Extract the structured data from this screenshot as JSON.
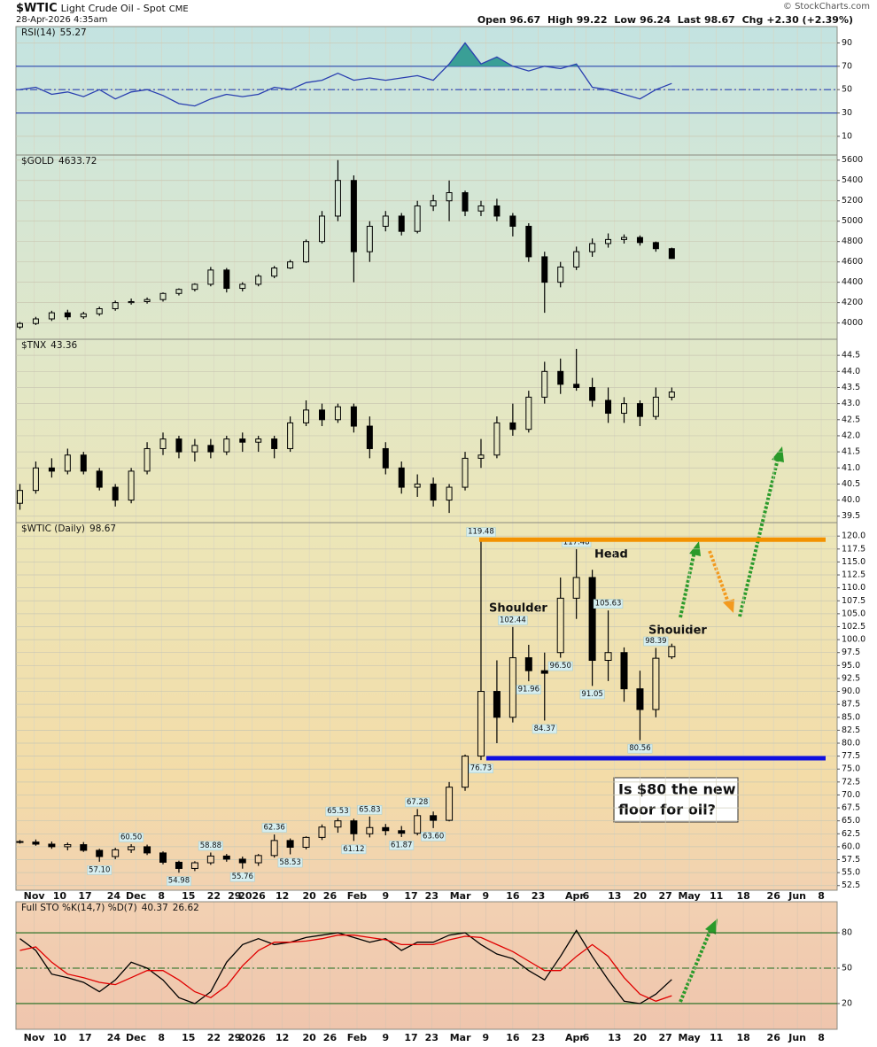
{
  "header": {
    "symbol": "$WTIC",
    "name": "Light Crude Oil - Spot",
    "exchange": "CME",
    "date": "28-Apr-2026 4:35am",
    "quote_labels": [
      "Open",
      "High",
      "Low",
      "Last",
      "Chg"
    ],
    "change": "+2.30 (+2.39%)",
    "credit": "© StockCharts.com"
  },
  "x_axis": {
    "xlim": [
      -0.25,
      51.4
    ],
    "xticks": [
      {
        "value": 0.9,
        "label": "Nov"
      },
      {
        "value": 2.5,
        "label": "10"
      },
      {
        "value": 4.1,
        "label": "17"
      },
      {
        "value": 5.9,
        "label": "24"
      },
      {
        "value": 7.3,
        "label": "Dec"
      },
      {
        "value": 8.9,
        "label": "8"
      },
      {
        "value": 10.6,
        "label": "15"
      },
      {
        "value": 12.2,
        "label": "22"
      },
      {
        "value": 13.5,
        "label": "29"
      },
      {
        "value": 14.6,
        "label": "2026"
      },
      {
        "value": 16.5,
        "label": "12"
      },
      {
        "value": 18.2,
        "label": "20"
      },
      {
        "value": 19.5,
        "label": "26"
      },
      {
        "value": 21.2,
        "label": "Feb"
      },
      {
        "value": 23.0,
        "label": "9"
      },
      {
        "value": 24.6,
        "label": "17"
      },
      {
        "value": 25.9,
        "label": "23"
      },
      {
        "value": 27.7,
        "label": "Mar"
      },
      {
        "value": 29.3,
        "label": "9"
      },
      {
        "value": 31.0,
        "label": "16"
      },
      {
        "value": 32.6,
        "label": "23"
      },
      {
        "value": 34.9,
        "label": "Apr"
      },
      {
        "value": 35.6,
        "label": "6"
      },
      {
        "value": 37.4,
        "label": "13"
      },
      {
        "value": 39.0,
        "label": "20"
      },
      {
        "value": 40.6,
        "label": "27"
      },
      {
        "value": 42.1,
        "label": "May"
      },
      {
        "value": 43.8,
        "label": "11"
      },
      {
        "value": 45.5,
        "label": "18"
      },
      {
        "value": 47.4,
        "label": "26"
      },
      {
        "value": 48.9,
        "label": "Jun"
      },
      {
        "value": 50.4,
        "label": "8"
      }
    ]
  },
  "chart_data": [
    {
      "type": "line",
      "name": "RSI(14)",
      "ylim": [
        -6,
        104
      ],
      "yticks": [
        10,
        30,
        50,
        70,
        90
      ],
      "grid": true,
      "levels": [
        {
          "value": 70,
          "style": "solid",
          "color": "#2a3fb0"
        },
        {
          "value": 50,
          "style": "dashdot",
          "color": "#2a3fb0"
        },
        {
          "value": 30,
          "style": "solid",
          "color": "#2a3fb0"
        }
      ],
      "fill_above": 70,
      "fill_below": 30,
      "fill_color": "#3a9f96",
      "series": [
        {
          "name": "RSI(14)",
          "color": "#2a3fb0",
          "values": [
            50,
            52,
            46,
            48,
            44,
            50,
            42,
            48,
            50,
            45,
            38,
            36,
            42,
            46,
            44,
            46,
            52,
            50,
            56,
            58,
            64,
            58,
            60,
            58,
            60,
            62,
            58,
            72,
            90,
            72,
            78,
            70,
            66,
            70,
            68,
            72,
            52,
            50,
            46,
            42,
            50,
            55.27
          ]
        }
      ]
    },
    {
      "type": "candlestick",
      "name": "$GOLD",
      "ylim": [
        3840,
        5650
      ],
      "yticks": [
        4000,
        4200,
        4400,
        4600,
        4800,
        5000,
        5200,
        5400,
        5600
      ],
      "grid": true,
      "open": [
        3960,
        3995,
        4040,
        4100,
        4060,
        4090,
        4140,
        4200,
        4210,
        4230,
        4290,
        4330,
        4380,
        4520,
        4340,
        4380,
        4460,
        4540,
        4600,
        4800,
        5050,
        5400,
        4700,
        4950,
        5050,
        4900,
        5150,
        5200,
        5280,
        5100,
        5150,
        5050,
        4950,
        4650,
        4400,
        4550,
        4700,
        4780,
        4820,
        4840,
        4790,
        4730
      ],
      "high": [
        4010,
        4060,
        4120,
        4130,
        4110,
        4160,
        4220,
        4240,
        4250,
        4300,
        4340,
        4390,
        4550,
        4540,
        4400,
        4480,
        4560,
        4620,
        4820,
        5100,
        5600,
        5450,
        5000,
        5100,
        5080,
        5200,
        5260,
        5400,
        5300,
        5200,
        5220,
        5080,
        4980,
        4700,
        4600,
        4750,
        4830,
        4880,
        4870,
        4860,
        4800,
        4740
      ],
      "low": [
        3940,
        3980,
        4020,
        4030,
        4040,
        4070,
        4120,
        4180,
        4190,
        4210,
        4270,
        4310,
        4360,
        4300,
        4310,
        4360,
        4440,
        4530,
        4590,
        4780,
        5000,
        4400,
        4600,
        4900,
        4860,
        4880,
        5100,
        5000,
        5050,
        5050,
        5000,
        4850,
        4600,
        4100,
        4350,
        4520,
        4650,
        4740,
        4780,
        4760,
        4700,
        4630
      ],
      "close": [
        3995,
        4040,
        4100,
        4060,
        4090,
        4140,
        4200,
        4210,
        4230,
        4290,
        4330,
        4380,
        4520,
        4340,
        4380,
        4460,
        4540,
        4600,
        4800,
        5050,
        5400,
        4700,
        4950,
        5050,
        4900,
        5150,
        5200,
        5280,
        5100,
        5150,
        5050,
        4950,
        4650,
        4400,
        4550,
        4700,
        4780,
        4820,
        4840,
        4790,
        4730,
        4633.72
      ]
    },
    {
      "type": "candlestick",
      "name": "$TNX",
      "ylim": [
        39.3,
        45.0
      ],
      "grid": true,
      "yticks": [
        39.5,
        {
          "value": 40,
          "label": "40.0"
        },
        40.5,
        {
          "value": 41,
          "label": "41.0"
        },
        41.5,
        {
          "value": 42,
          "label": "42.0"
        },
        42.5,
        {
          "value": 43,
          "label": "43.0"
        },
        43.5,
        {
          "value": 44,
          "label": "44.0"
        },
        44.5
      ],
      "open": [
        39.9,
        40.3,
        41.0,
        40.9,
        41.4,
        40.9,
        40.4,
        40.0,
        40.9,
        41.6,
        41.9,
        41.5,
        41.7,
        41.5,
        41.9,
        41.8,
        41.9,
        41.6,
        42.4,
        42.8,
        42.5,
        42.9,
        42.3,
        41.6,
        41.0,
        40.4,
        40.5,
        40.0,
        40.4,
        41.3,
        41.4,
        42.4,
        42.2,
        43.2,
        44.0,
        43.6,
        43.5,
        43.1,
        42.7,
        43.0,
        42.6,
        43.2
      ],
      "high": [
        40.5,
        41.2,
        41.3,
        41.6,
        41.5,
        41.0,
        40.5,
        41.0,
        41.8,
        42.1,
        42.0,
        41.9,
        41.9,
        42.0,
        42.1,
        42.0,
        42.0,
        42.6,
        43.1,
        43.0,
        43.0,
        43.0,
        42.6,
        41.8,
        41.2,
        40.8,
        40.7,
        40.5,
        41.5,
        41.9,
        42.6,
        43.0,
        43.4,
        44.3,
        44.4,
        44.7,
        43.8,
        43.5,
        43.2,
        43.1,
        43.5,
        43.5
      ],
      "low": [
        39.7,
        40.2,
        40.7,
        40.8,
        40.8,
        40.3,
        39.8,
        39.9,
        40.8,
        41.4,
        41.3,
        41.2,
        41.3,
        41.4,
        41.5,
        41.5,
        41.3,
        41.5,
        42.3,
        42.3,
        42.4,
        42.1,
        41.3,
        40.8,
        40.2,
        40.1,
        39.8,
        39.6,
        40.3,
        41.0,
        41.3,
        42.0,
        42.1,
        43.0,
        43.3,
        43.4,
        42.9,
        42.4,
        42.4,
        42.3,
        42.5,
        43.1
      ],
      "close": [
        40.3,
        41.0,
        40.9,
        41.4,
        40.9,
        40.4,
        40.0,
        40.9,
        41.6,
        41.9,
        41.5,
        41.7,
        41.5,
        41.9,
        41.8,
        41.9,
        41.6,
        42.4,
        42.8,
        42.5,
        42.9,
        42.3,
        41.6,
        41.0,
        40.4,
        40.5,
        40.0,
        40.4,
        41.3,
        41.4,
        42.4,
        42.2,
        43.2,
        44.0,
        43.6,
        43.5,
        43.1,
        42.7,
        43.0,
        42.6,
        43.2,
        43.36
      ]
    },
    {
      "type": "candlestick",
      "name": "$WTIC (Daily)",
      "ylim": [
        51.6,
        122.6
      ],
      "grid": true,
      "yticks": [
        52.5,
        {
          "value": 55,
          "label": "55.0"
        },
        57.5,
        {
          "value": 60,
          "label": "60.0"
        },
        62.5,
        {
          "value": 65,
          "label": "65.0"
        },
        67.5,
        {
          "value": 70,
          "label": "70.0"
        },
        72.5,
        {
          "value": 75,
          "label": "75.0"
        },
        77.5,
        {
          "value": 80,
          "label": "80.0"
        },
        82.5,
        {
          "value": 85,
          "label": "85.0"
        },
        87.5,
        {
          "value": 90,
          "label": "90.0"
        },
        92.5,
        {
          "value": 95,
          "label": "95.0"
        },
        97.5,
        {
          "value": 100,
          "label": "100.0"
        },
        102.5,
        {
          "value": 105,
          "label": "105.0"
        },
        107.5,
        {
          "value": 110,
          "label": "110.0"
        },
        112.5,
        {
          "value": 115,
          "label": "115.0"
        },
        117.5,
        {
          "value": 120,
          "label": "120.0"
        }
      ],
      "open": [
        61.0,
        60.9,
        60.5,
        60.0,
        60.4,
        59.3,
        58.1,
        59.4,
        60.0,
        58.8,
        57.0,
        55.8,
        56.9,
        58.2,
        57.6,
        56.9,
        58.3,
        61.2,
        59.9,
        61.8,
        63.8,
        65.0,
        62.5,
        63.7,
        63.1,
        62.6,
        66.0,
        65.1,
        71.5,
        77.5,
        90.0,
        85.0,
        96.5,
        94.0,
        97.5,
        108.0,
        112.0,
        96.0,
        97.5,
        90.5,
        86.5,
        96.67
      ],
      "high": [
        61.3,
        61.4,
        61.0,
        60.8,
        60.9,
        59.6,
        59.8,
        60.5,
        60.4,
        59.1,
        57.3,
        57.2,
        58.88,
        58.6,
        58.1,
        58.6,
        62.36,
        61.6,
        62.0,
        64.3,
        65.53,
        65.4,
        65.83,
        64.4,
        64.0,
        67.28,
        66.8,
        72.5,
        77.8,
        119.48,
        96.0,
        102.44,
        99.0,
        97.5,
        112.0,
        117.48,
        113.5,
        105.63,
        98.5,
        94.0,
        98.39,
        99.22
      ],
      "low": [
        60.6,
        60.2,
        59.6,
        59.3,
        59.0,
        57.1,
        57.6,
        58.8,
        58.4,
        56.6,
        54.98,
        55.3,
        56.5,
        57.1,
        55.76,
        56.3,
        57.9,
        58.53,
        59.5,
        61.3,
        62.7,
        61.12,
        61.8,
        62.2,
        61.87,
        62.2,
        63.6,
        64.9,
        70.8,
        76.73,
        80.0,
        84.0,
        91.96,
        84.37,
        96.5,
        104.0,
        91.05,
        92.0,
        88.0,
        80.56,
        85.0,
        96.24
      ],
      "close": [
        60.9,
        60.5,
        60.0,
        60.4,
        59.3,
        58.1,
        59.4,
        60.0,
        58.8,
        57.0,
        55.8,
        56.9,
        58.2,
        57.6,
        56.9,
        58.3,
        61.2,
        59.9,
        61.8,
        63.8,
        65.0,
        62.5,
        63.7,
        63.1,
        62.6,
        66.0,
        65.1,
        71.5,
        77.5,
        90.0,
        85.0,
        96.5,
        94.0,
        93.5,
        108.0,
        112.0,
        96.0,
        97.5,
        90.5,
        86.5,
        96.4,
        98.67
      ],
      "price_labels": [
        {
          "x": 29,
          "value": 119.48,
          "label": "119.48"
        },
        {
          "x": 35,
          "value": 117.48,
          "label": "117.48"
        },
        {
          "x": 31,
          "value": 102.44,
          "label": "102.44"
        },
        {
          "x": 32,
          "value": 91.96,
          "label": "91.96"
        },
        {
          "x": 33,
          "value": 84.37,
          "label": "84.37"
        },
        {
          "x": 34,
          "value": 96.5,
          "label": "96.50"
        },
        {
          "x": 36,
          "value": 91.05,
          "label": "91.05"
        },
        {
          "x": 37,
          "value": 105.63,
          "label": "105.63"
        },
        {
          "x": 40,
          "value": 98.39,
          "label": "98.39"
        },
        {
          "x": 39,
          "value": 80.56,
          "label": "80.56"
        },
        {
          "x": 29,
          "value": 76.73,
          "label": "76.73"
        },
        {
          "x": 5,
          "value": 57.1,
          "label": "57.10"
        },
        {
          "x": 7,
          "value": 60.5,
          "label": "60.50"
        },
        {
          "x": 10,
          "value": 54.98,
          "label": "54.98"
        },
        {
          "x": 12,
          "value": 58.88,
          "label": "58.88"
        },
        {
          "x": 14,
          "value": 55.76,
          "label": "55.76"
        },
        {
          "x": 16,
          "value": 62.36,
          "label": "62.36"
        },
        {
          "x": 17,
          "value": 58.53,
          "label": "58.53"
        },
        {
          "x": 20,
          "value": 65.53,
          "label": "65.53"
        },
        {
          "x": 21,
          "value": 61.12,
          "label": "61.12"
        },
        {
          "x": 22,
          "value": 65.83,
          "label": "65.83"
        },
        {
          "x": 24,
          "value": 61.87,
          "label": "61.87"
        },
        {
          "x": 25,
          "value": 67.28,
          "label": "67.28"
        },
        {
          "x": 26,
          "value": 63.6,
          "label": "63.60"
        }
      ],
      "levels": [
        {
          "value": 119.3,
          "style": "thick",
          "color": "#f39200"
        },
        {
          "value": 77.1,
          "style": "thick",
          "color": "#1010e0"
        }
      ],
      "annotations": [
        "Shoulder",
        "Head",
        "Shoulder"
      ],
      "callout": [
        "Is $80 the new",
        "floor for oil?"
      ]
    },
    {
      "type": "line",
      "name": "Full STO %K(14,7) %D(7)",
      "ylim": [
        -1.8,
        106.3
      ],
      "yticks": [
        20,
        50,
        80
      ],
      "grid": true,
      "levels": [
        {
          "value": 80,
          "style": "solid",
          "color": "#1c6b1c"
        },
        {
          "value": 50,
          "style": "dashdot",
          "color": "#1c6b1c"
        },
        {
          "value": 20,
          "style": "solid",
          "color": "#1c6b1c"
        }
      ],
      "series": [
        {
          "name": "%K",
          "color": "#000000",
          "values": [
            75,
            65,
            45,
            42,
            38,
            30,
            40,
            55,
            50,
            40,
            25,
            20,
            30,
            55,
            70,
            75,
            70,
            72,
            76,
            78,
            80,
            76,
            72,
            75,
            65,
            72,
            72,
            78,
            80,
            70,
            62,
            58,
            48,
            40,
            60,
            82,
            60,
            40,
            22,
            20,
            28,
            40.37
          ]
        },
        {
          "name": "%D",
          "color": "#e00000",
          "values": [
            65,
            68,
            55,
            45,
            42,
            38,
            36,
            42,
            48,
            48,
            40,
            30,
            25,
            35,
            52,
            65,
            72,
            72,
            73,
            75,
            78,
            78,
            76,
            74,
            70,
            70,
            70,
            74,
            77,
            76,
            70,
            64,
            56,
            48,
            48,
            60,
            70,
            60,
            42,
            28,
            22,
            26.62
          ]
        }
      ]
    }
  ]
}
